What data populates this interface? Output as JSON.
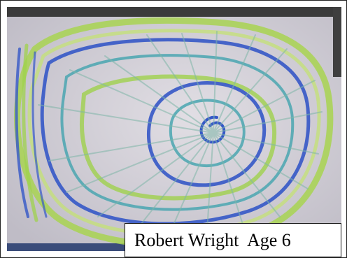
{
  "caption": {
    "text": "Robert Wright  Age 6"
  },
  "drawing": {
    "colors": {
      "paper": "#c9c6cf",
      "paper_highlight": "#e1dee4",
      "blue": "#3558c7",
      "teal": "#4aa6b0",
      "green": "#9fd14c",
      "light_green": "#c6e07a",
      "dark_border": "#3b3b3b"
    }
  }
}
